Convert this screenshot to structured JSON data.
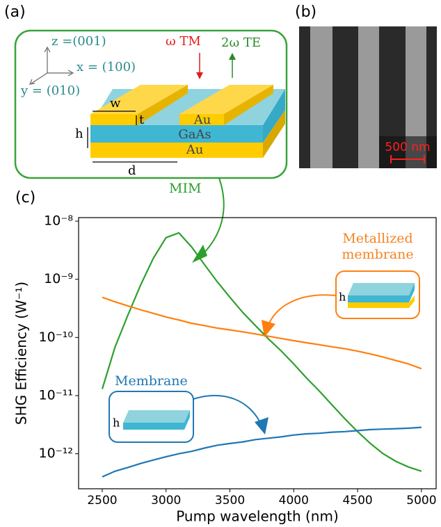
{
  "panel_labels": [
    "(a)",
    "(b)",
    "(c)"
  ],
  "panel_a": {
    "axes": [
      "z =(001)",
      "x = (100)",
      "y = (010)"
    ],
    "input": "ω TM",
    "output": "2ω TE",
    "dimensions": [
      "w",
      "t",
      "h",
      "d"
    ],
    "materials": [
      "Au",
      "GaAs",
      "Au"
    ]
  },
  "panel_b": {
    "scale_bar": "500 nm"
  },
  "chart_data": {
    "type": "line",
    "xlabel": "Pump wavelength (nm)",
    "ylabel": "SHG Efficiency (W⁻¹)",
    "yscale": "log",
    "grid": false,
    "x": [
      2500,
      2600,
      2700,
      2800,
      2900,
      3000,
      3100,
      3200,
      3300,
      3400,
      3500,
      3600,
      3700,
      3800,
      3900,
      4000,
      4100,
      4200,
      4300,
      4400,
      4500,
      4600,
      4700,
      4800,
      4900,
      5000
    ],
    "series": [
      {
        "name": "MIM",
        "color": "#2ca02c",
        "values": [
          1.3e-11,
          6.8e-11,
          2.4e-10,
          7.9e-10,
          2.3e-09,
          5.2e-09,
          6.3e-09,
          3.6e-09,
          1.8e-09,
          9.1e-10,
          4.9e-10,
          2.7e-10,
          1.6e-10,
          9.5e-11,
          5.9e-11,
          3.5e-11,
          2e-11,
          1.2e-11,
          6.9e-12,
          4e-12,
          2.4e-12,
          1.5e-12,
          1e-12,
          7.4e-13,
          5.9e-13,
          5e-13
        ]
      },
      {
        "name": "Metallized membrane",
        "color": "#ff7f0e",
        "values": [
          4.9e-10,
          4.1e-10,
          3.5e-10,
          3e-10,
          2.6e-10,
          2.25e-10,
          2e-10,
          1.75e-10,
          1.6e-10,
          1.45e-10,
          1.35e-10,
          1.25e-10,
          1.15e-10,
          1.05e-10,
          9.6e-11,
          8.8e-11,
          8.1e-11,
          7.5e-11,
          6.9e-11,
          6.4e-11,
          5.8e-11,
          5.2e-11,
          4.6e-11,
          4e-11,
          3.5e-11,
          2.9e-11
        ]
      },
      {
        "name": "Membrane",
        "color": "#1f77b4",
        "values": [
          4e-13,
          5e-13,
          5.8e-13,
          6.8e-13,
          7.8e-13,
          8.9e-13,
          1e-12,
          1.1e-12,
          1.25e-12,
          1.4e-12,
          1.5e-12,
          1.6e-12,
          1.75e-12,
          1.85e-12,
          1.95e-12,
          2.1e-12,
          2.2e-12,
          2.25e-12,
          2.35e-12,
          2.4e-12,
          2.5e-12,
          2.6e-12,
          2.65e-12,
          2.7e-12,
          2.75e-12,
          2.85e-12
        ]
      }
    ],
    "xlim": [
      2315,
      5115
    ],
    "xticks": [
      2500,
      3000,
      3500,
      4000,
      4500,
      5000
    ],
    "ylim": [
      2.5e-13,
      1.15e-08
    ],
    "yticks": [
      {
        "value": 1e-08,
        "label": "10⁻⁸"
      },
      {
        "value": 1e-09,
        "label": "10⁻⁹"
      },
      {
        "value": 1e-10,
        "label": "10⁻¹⁰"
      },
      {
        "value": 1e-11,
        "label": "10⁻¹¹"
      },
      {
        "value": 1e-12,
        "label": "10⁻¹²"
      }
    ],
    "inset_labels": [
      "h",
      "h"
    ]
  }
}
